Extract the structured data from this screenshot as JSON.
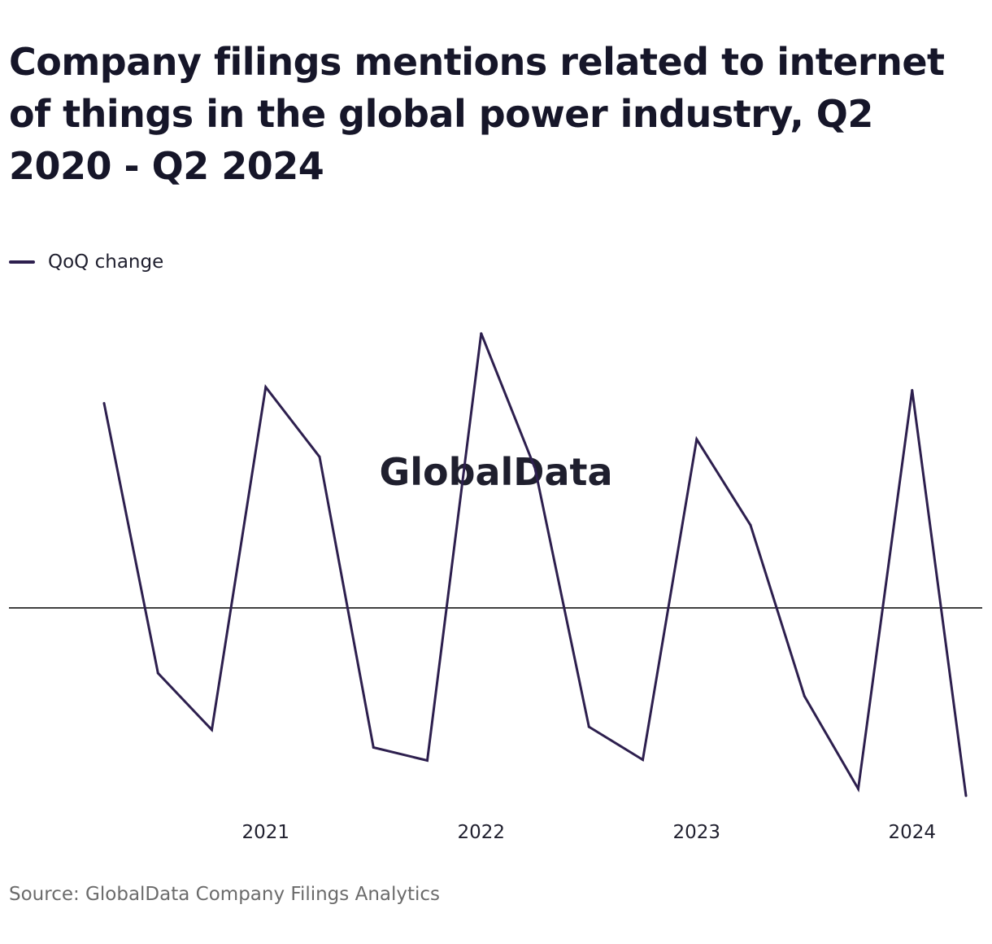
{
  "title": "Company filings mentions related to internet of things in the global power industry, Q2 2020 - Q2 2024",
  "legend": {
    "label": "QoQ change"
  },
  "source": "Source: GlobalData Company Filings Analytics",
  "watermark": "GlobalData",
  "colors": {
    "line": "#2d1f4e",
    "zero_line": "#000000",
    "watermark": "#f3f3f3"
  },
  "chart_data": {
    "type": "line",
    "x": [
      "Q2 2020",
      "Q3 2020",
      "Q4 2020",
      "Q1 2021",
      "Q2 2021",
      "Q3 2021",
      "Q4 2021",
      "Q1 2022",
      "Q2 2022",
      "Q3 2022",
      "Q4 2022",
      "Q1 2023",
      "Q2 2023",
      "Q3 2023",
      "Q4 2023",
      "Q1 2024",
      "Q2 2024"
    ],
    "x_tick_labels": [
      {
        "x": "Q1 2021",
        "label": "2021"
      },
      {
        "x": "Q1 2022",
        "label": "2022"
      },
      {
        "x": "Q1 2023",
        "label": "2023"
      },
      {
        "x": "Q1 2024",
        "label": "2024"
      }
    ],
    "series": [
      {
        "name": "QoQ change",
        "values": [
          267,
          -85,
          -159,
          288,
          197,
          -182,
          -199,
          358,
          182,
          -155,
          -198,
          220,
          108,
          -115,
          -236,
          284,
          -245
        ]
      }
    ],
    "ylim": [
      -260,
      380
    ],
    "y_axis_labels": false,
    "zero_line": true,
    "grid": false,
    "legend_position": "top-left"
  }
}
